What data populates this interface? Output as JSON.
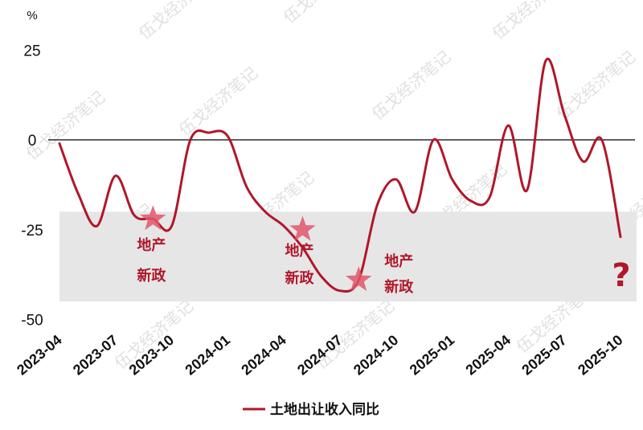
{
  "chart_data": {
    "type": "line",
    "unit_label": "%",
    "x": [
      "2023-04",
      "2023-05",
      "2023-06",
      "2023-07",
      "2023-08",
      "2023-09",
      "2023-10",
      "2023-11",
      "2023-12",
      "2024-01",
      "2024-02",
      "2024-03",
      "2024-04",
      "2024-05",
      "2024-06",
      "2024-07",
      "2024-08",
      "2024-09",
      "2024-10",
      "2024-11",
      "2024-12",
      "2025-01",
      "2025-02",
      "2025-03",
      "2025-04",
      "2025-05",
      "2025-06",
      "2025-07",
      "2025-08",
      "2025-09",
      "2025-10"
    ],
    "series": [
      {
        "name": "土地出让收入同比",
        "values": [
          -1,
          -15,
          -24,
          -10,
          -21,
          -22,
          -24,
          0,
          2,
          1,
          -13,
          -20,
          -24,
          -30,
          -38,
          -42,
          -39,
          -18,
          -11,
          -20,
          0,
          -11,
          -17,
          -16,
          4,
          -14,
          22,
          7,
          -6,
          0,
          -27
        ]
      }
    ],
    "x_tick_labels": [
      "2023-04",
      "2023-07",
      "2023-10",
      "2024-01",
      "2024-04",
      "2024-07",
      "2024-10",
      "2025-01",
      "2025-04",
      "2025-07",
      "2025-10"
    ],
    "y_ticks": [
      25,
      0,
      -25,
      -50
    ],
    "ylim": [
      -50,
      30
    ],
    "zero_line": true,
    "grid": false,
    "legend_position": "bottom-center",
    "shaded_band": {
      "x_from": "2023-04",
      "x_to": "2025-10",
      "y_from": -45,
      "y_to": -20,
      "color": "#e6e6e6"
    },
    "annotations": [
      {
        "x": "2023-09",
        "y": -22,
        "marker": "star",
        "text": "地产新政"
      },
      {
        "x": "2024-05",
        "y": -25,
        "marker": "star",
        "text": "地产新政"
      },
      {
        "x": "2024-08",
        "y": -39,
        "marker": "star",
        "text": "地产新政"
      }
    ],
    "end_annotation": "?",
    "colors": {
      "line": "#b0172a",
      "star": "#e0566a",
      "band": "#e6e6e6"
    }
  },
  "watermark": "伍戈经济笔记"
}
